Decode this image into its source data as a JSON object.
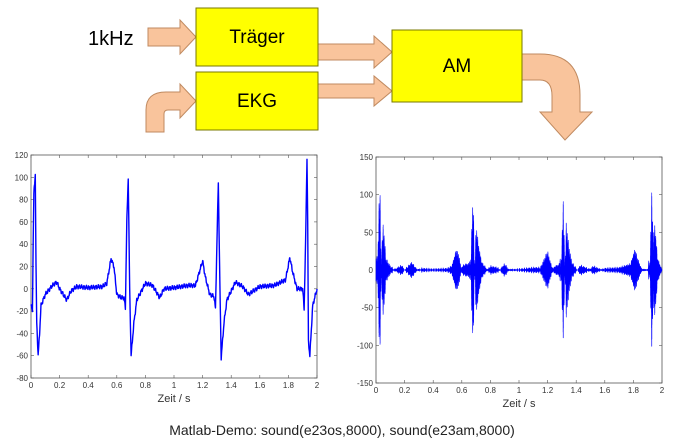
{
  "diagram": {
    "input_label": "1kHz",
    "blocks": {
      "carrier": "Träger",
      "ecg": "EKG",
      "am": "AM"
    },
    "colors": {
      "block_fill": "#ffff00",
      "arrow_fill": "#f9c49c",
      "signal": "#0000ff"
    }
  },
  "caption": "Matlab-Demo:  sound(e23os,8000), sound(e23am,8000)",
  "chart_data": [
    {
      "type": "line",
      "title": "",
      "xlabel": "Zeit / s",
      "ylabel": "",
      "xlim": [
        0,
        2
      ],
      "ylim": [
        -80,
        120
      ],
      "xticks": [
        "0",
        "0.2",
        "0.4",
        "0.6",
        "0.8",
        "1",
        "1.2",
        "1.4",
        "1.6",
        "1.8",
        "2"
      ],
      "yticks": [
        "-80",
        "-60",
        "-40",
        "-20",
        "0",
        "20",
        "40",
        "60",
        "80",
        "100",
        "120"
      ],
      "grid": false,
      "color": "#0000ff",
      "x": [
        0,
        0.01,
        0.015,
        0.02,
        0.03,
        0.035,
        0.04,
        0.05,
        0.06,
        0.07,
        0.1,
        0.15,
        0.18,
        0.2,
        0.25,
        0.28,
        0.32,
        0.4,
        0.5,
        0.53,
        0.56,
        0.58,
        0.6,
        0.63,
        0.65,
        0.66,
        0.67,
        0.68,
        0.69,
        0.7,
        0.72,
        0.74,
        0.8,
        0.85,
        0.9,
        0.93,
        1.0,
        1.1,
        1.15,
        1.2,
        1.22,
        1.25,
        1.28,
        1.29,
        1.3,
        1.31,
        1.32,
        1.33,
        1.35,
        1.37,
        1.43,
        1.48,
        1.52,
        1.6,
        1.7,
        1.78,
        1.81,
        1.83,
        1.86,
        1.9,
        1.91,
        1.92,
        1.93,
        1.935,
        1.94,
        1.95,
        1.97,
        2.0
      ],
      "y": [
        -15,
        -20,
        40,
        85,
        103,
        20,
        -30,
        -60,
        -40,
        -15,
        -5,
        3,
        6,
        0,
        -10,
        -2,
        2,
        1,
        2,
        5,
        27,
        20,
        -5,
        -8,
        -8,
        -17,
        60,
        100,
        0,
        -60,
        -30,
        -10,
        5,
        3,
        -8,
        0,
        1,
        3,
        3,
        25,
        10,
        -5,
        -7,
        -18,
        40,
        96,
        10,
        -62,
        -30,
        -10,
        6,
        2,
        -5,
        2,
        3,
        8,
        28,
        15,
        0,
        0,
        -18,
        40,
        118,
        60,
        -47,
        -60,
        -15,
        0
      ]
    },
    {
      "type": "line",
      "title": "",
      "xlabel": "Zeit / s",
      "ylabel": "",
      "xlim": [
        0,
        2
      ],
      "ylim": [
        -150,
        150
      ],
      "xticks": [
        "0",
        "0.2",
        "0.4",
        "0.6",
        "0.8",
        "1",
        "1.2",
        "1.4",
        "1.6",
        "1.8",
        "2"
      ],
      "yticks": [
        "-150",
        "-100",
        "-50",
        "0",
        "50",
        "100",
        "150"
      ],
      "grid": false,
      "color": "#0000ff",
      "carrier_hz": 1000
    }
  ]
}
